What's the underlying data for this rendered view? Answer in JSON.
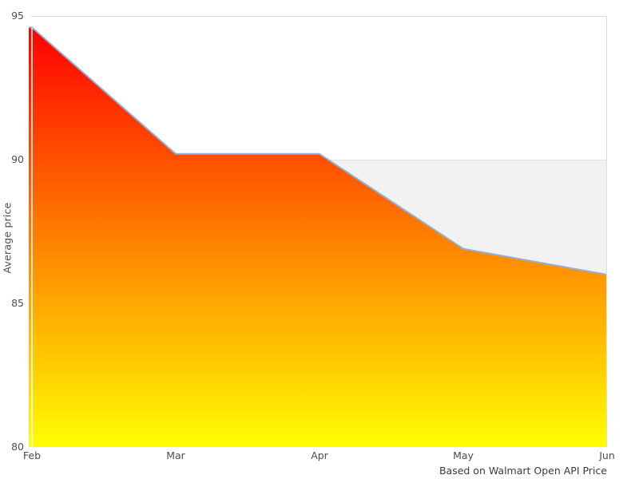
{
  "chart_data": {
    "type": "area",
    "title": "",
    "x_categories": [
      "Feb",
      "Mar",
      "Apr",
      "May",
      "Jun"
    ],
    "series": [
      {
        "name": "Average price",
        "values": [
          94.6,
          90.2,
          90.2,
          86.9,
          86.0
        ]
      }
    ],
    "reference_band": {
      "top_value": 90,
      "fill": "#f2f2f2",
      "position": "behind main series, below value 90"
    },
    "ylabel": "Average price",
    "xlabel": "",
    "ylim": [
      80,
      95
    ],
    "yticks": [
      80,
      85,
      90,
      95
    ],
    "grid": "top border, right border, gridline at 90",
    "legend": "none",
    "caption": "Based on Walmart Open API Price"
  },
  "colors": {
    "background": "#ffffff",
    "area_gradient_top": "#ff0000",
    "area_gradient_bottom": "#ffff00",
    "series_line": "#92b1d4",
    "band_fill": "#f2f2f2",
    "gridline": "#e0e0e0",
    "border": "#dcdcdc",
    "tick_text": "#4d4d4d",
    "caption_text": "#3a3a3a"
  }
}
